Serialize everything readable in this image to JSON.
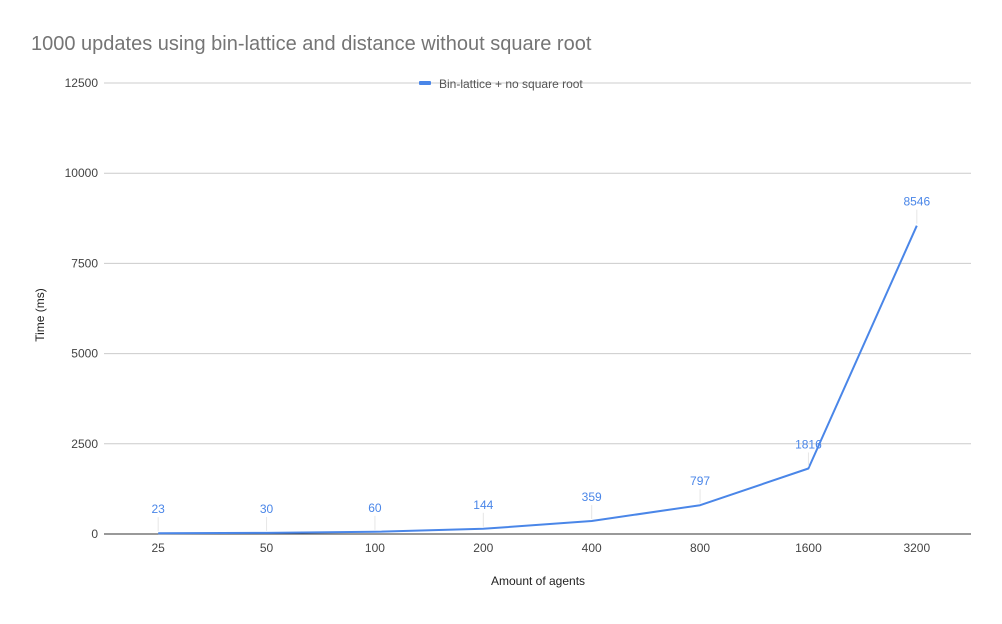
{
  "chart_data": {
    "type": "line",
    "title": "1000 updates using bin-lattice and distance without square root",
    "xlabel": "Amount of agents",
    "ylabel": "Time (ms)",
    "categories": [
      "25",
      "50",
      "100",
      "200",
      "400",
      "800",
      "1600",
      "3200"
    ],
    "series": [
      {
        "name": "Bin-lattice + no square root",
        "color": "#4a86e8",
        "values": [
          23,
          30,
          60,
          144,
          359,
          797,
          1816,
          8546
        ]
      }
    ],
    "ylim": [
      0,
      12500
    ],
    "yticks": [
      "0",
      "2500",
      "5000",
      "7500",
      "10000",
      "12500"
    ],
    "grid": true,
    "legend_position": "top-center",
    "data_labels": true
  },
  "colors": {
    "title": "#757575",
    "axis_text": "#444444",
    "grid": "#cccccc",
    "axis_line": "#333333",
    "label": "#4a86e8"
  }
}
